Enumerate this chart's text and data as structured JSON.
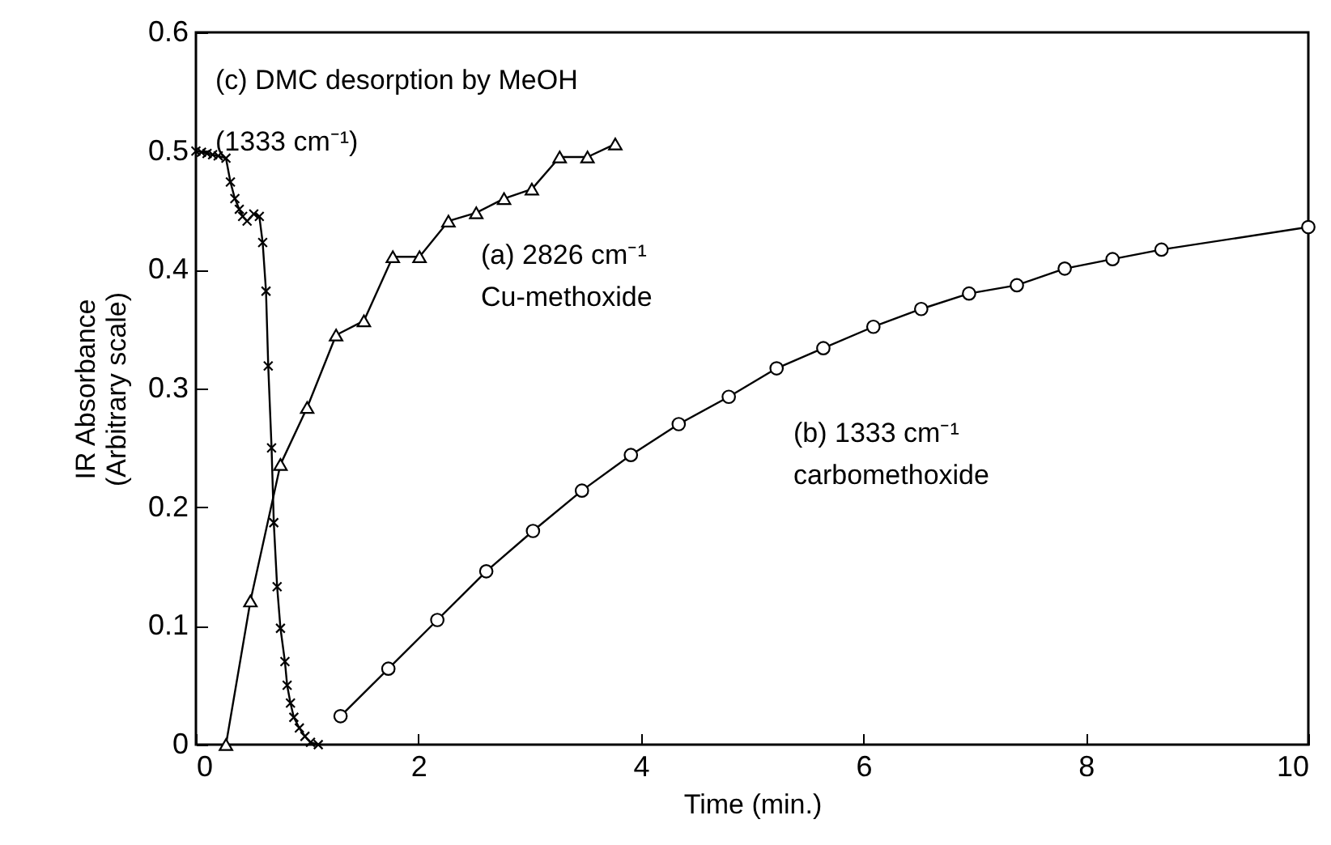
{
  "chart_data": {
    "type": "line",
    "xlabel": "Time  (min.)",
    "ylabel": "IR Absorbance\n(Arbitrary scale)",
    "xlim": [
      0,
      10
    ],
    "ylim": [
      0,
      0.6
    ],
    "xticks": [
      0,
      2,
      4,
      6,
      8,
      10
    ],
    "yticks": [
      0,
      0.1,
      0.2,
      0.3,
      0.4,
      0.5,
      0.6
    ],
    "grid": false,
    "series": [
      {
        "color": "#000000",
        "marker": "triangle",
        "x": [
          0.27,
          0.49,
          0.76,
          1.0,
          1.26,
          1.51,
          1.77,
          2.01,
          2.27,
          2.52,
          2.77,
          3.02,
          3.27,
          3.52,
          3.77
        ],
        "values": [
          0,
          0.121,
          0.236,
          0.284,
          0.345,
          0.357,
          0.411,
          0.411,
          0.441,
          0.448,
          0.46,
          0.468,
          0.495,
          0.495,
          0.506
        ]
      },
      {
        "color": "#000000",
        "marker": "circle",
        "x": [
          1.3,
          1.73,
          2.17,
          2.61,
          3.03,
          3.47,
          3.91,
          4.34,
          4.79,
          5.22,
          5.64,
          6.09,
          6.52,
          6.95,
          7.38,
          7.81,
          8.24,
          8.68,
          10
        ],
        "values": [
          0.024,
          0.064,
          0.105,
          0.146,
          0.18,
          0.214,
          0.244,
          0.27,
          0.293,
          0.317,
          0.334,
          0.352,
          0.367,
          0.38,
          0.387,
          0.401,
          0.409,
          0.417,
          0.436
        ]
      },
      {
        "color": "#000000",
        "marker": "cross",
        "x": [
          0,
          0.05,
          0.1,
          0.15,
          0.2,
          0.27,
          0.31,
          0.35,
          0.39,
          0.42,
          0.46,
          0.52,
          0.57,
          0.6,
          0.63,
          0.65,
          0.68,
          0.7,
          0.73,
          0.76,
          0.8,
          0.82,
          0.85,
          0.88,
          0.93,
          0.98,
          1.03,
          1.1
        ],
        "values": [
          0.5,
          0.499,
          0.498,
          0.497,
          0.496,
          0.494,
          0.474,
          0.46,
          0.451,
          0.445,
          0.441,
          0.447,
          0.445,
          0.423,
          0.382,
          0.319,
          0.25,
          0.187,
          0.133,
          0.098,
          0.07,
          0.05,
          0.035,
          0.023,
          0.014,
          0.007,
          0.002,
          0
        ]
      }
    ],
    "annotations": [
      "(c) DMC desorption by MeOH",
      "(1333  cm⁻¹)",
      "(a)  2826  cm⁻¹\nCu-methoxide",
      "(b)  1333  cm⁻¹\ncarbomethoxide"
    ]
  }
}
